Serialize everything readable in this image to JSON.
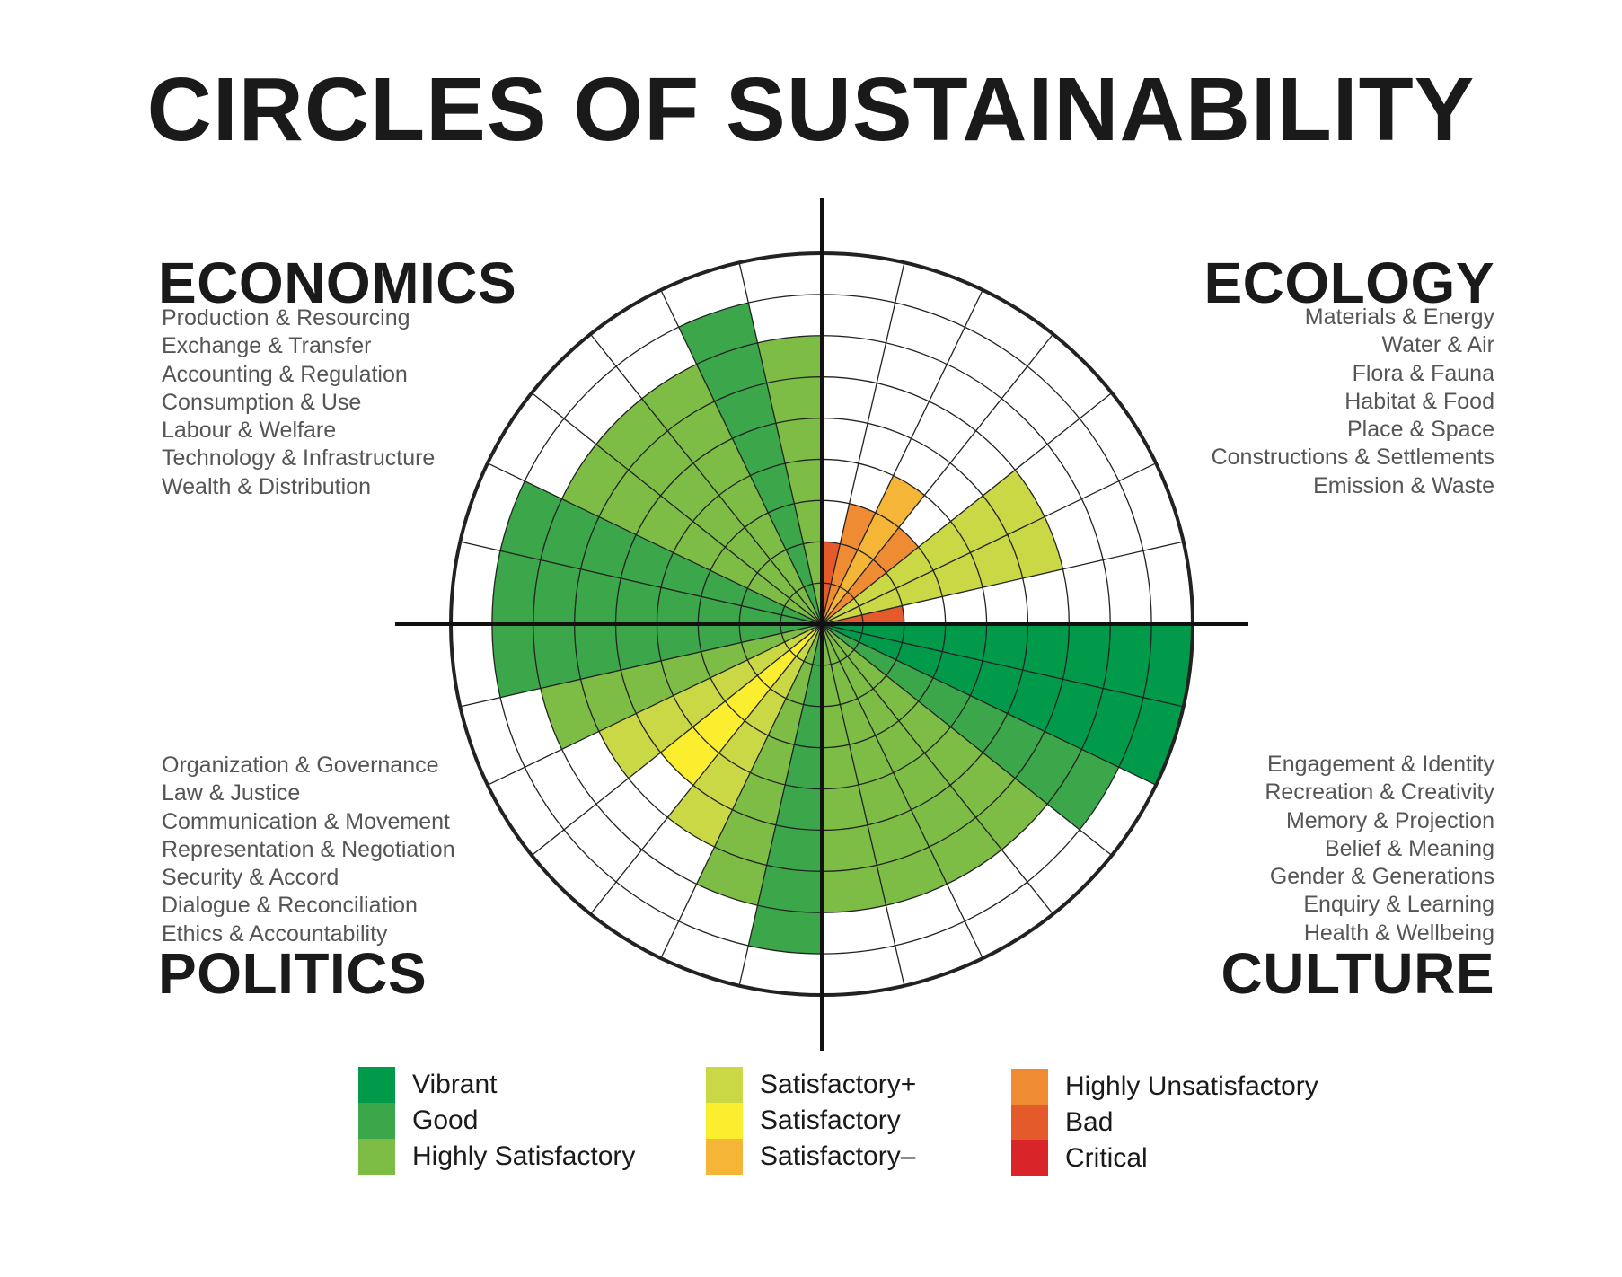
{
  "title": "CIRCLES OF SUSTAINABILITY",
  "domains": {
    "economics": {
      "title": "ECONOMICS",
      "items": [
        "Production & Resourcing",
        "Exchange & Transfer",
        "Accounting & Regulation",
        "Consumption & Use",
        "Labour & Welfare",
        "Technology & Infrastructure",
        "Wealth & Distribution"
      ]
    },
    "ecology": {
      "title": "ECOLOGY",
      "items": [
        "Materials & Energy",
        "Water & Air",
        "Flora & Fauna",
        "Habitat & Food",
        "Place & Space",
        "Constructions & Settlements",
        "Emission & Waste"
      ]
    },
    "politics": {
      "title": "POLITICS",
      "items": [
        "Organization & Governance",
        "Law & Justice",
        "Communication & Movement",
        "Representation & Negotiation",
        "Security & Accord",
        "Dialogue & Reconciliation",
        "Ethics & Accountability"
      ]
    },
    "culture": {
      "title": "CULTURE",
      "items": [
        "Engagement & Identity",
        "Recreation & Creativity",
        "Memory & Projection",
        "Belief & Meaning",
        "Gender & Generations",
        "Enquiry & Learning",
        "Health & Wellbeing"
      ]
    }
  },
  "legend": [
    {
      "label": "Vibrant",
      "color": "#009a4a"
    },
    {
      "label": "Good",
      "color": "#3ba64a"
    },
    {
      "label": "Highly Satisfactory",
      "color": "#7dbd45"
    },
    {
      "label": "Satisfactory+",
      "color": "#cbd846"
    },
    {
      "label": "Satisfactory",
      "color": "#fbee2e"
    },
    {
      "label": "Satisfactory–",
      "color": "#f5b537"
    },
    {
      "label": "Highly Unsatisfactory",
      "color": "#ee8b33"
    },
    {
      "label": "Bad",
      "color": "#e55a2b"
    },
    {
      "label": "Critical",
      "color": "#d9252a"
    }
  ],
  "chart_data": {
    "type": "polar-bar",
    "scale_max": 9,
    "domain_order": [
      "ecology",
      "culture",
      "politics",
      "economics"
    ],
    "series": [
      {
        "domain": "ecology",
        "values": [
          2,
          3,
          4,
          3,
          6,
          6,
          2
        ]
      },
      {
        "domain": "culture",
        "values": [
          9,
          9,
          8,
          7,
          7,
          7,
          7
        ]
      },
      {
        "domain": "politics",
        "values": [
          8,
          7,
          6,
          5,
          6,
          7,
          8
        ]
      },
      {
        "domain": "economics",
        "values": [
          8,
          8,
          7,
          7,
          7,
          8,
          7
        ]
      }
    ]
  }
}
